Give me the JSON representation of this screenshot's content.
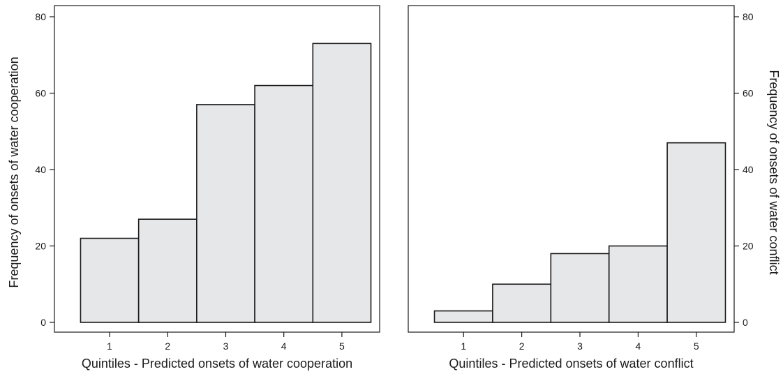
{
  "chart_data": [
    {
      "type": "bar",
      "categories": [
        "1",
        "2",
        "3",
        "4",
        "5"
      ],
      "values": [
        22,
        27,
        57,
        62,
        73
      ],
      "xlabel": "Quintiles - Predicted onsets of water cooperation",
      "ylabel": "Frequency of onsets of water cooperation",
      "ylim": [
        0,
        80
      ],
      "yticks": [
        0,
        20,
        40,
        60,
        80
      ],
      "y_axis_side": "left",
      "bar_color": "#e6e7e8",
      "grid": false
    },
    {
      "type": "bar",
      "categories": [
        "1",
        "2",
        "3",
        "4",
        "5"
      ],
      "values": [
        3,
        10,
        18,
        20,
        47
      ],
      "xlabel": "Quintiles - Predicted onsets of water conflict",
      "ylabel": "Frequency of onsets of water conflict",
      "ylim": [
        0,
        80
      ],
      "yticks": [
        0,
        20,
        40,
        60,
        80
      ],
      "y_axis_side": "right",
      "bar_color": "#e6e7e8",
      "grid": false
    }
  ]
}
